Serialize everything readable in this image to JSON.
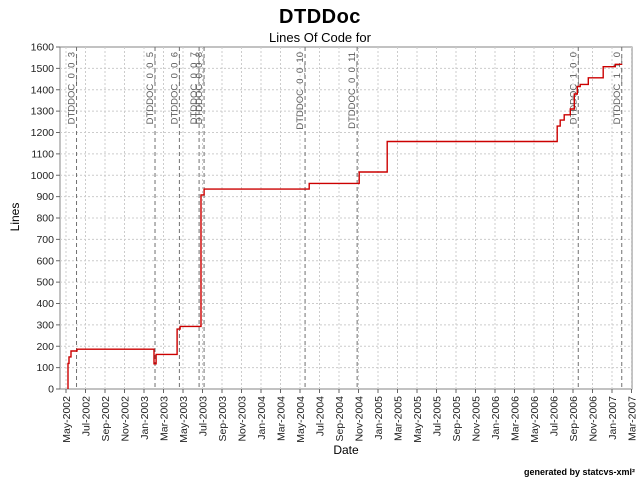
{
  "footer": "generated by statcvs-xml²",
  "colors": {
    "series_line": "#cc0000",
    "gridline": "#cccccc",
    "tag_line": "#707070",
    "tag_text": "#5a5a5a",
    "axis": "#666666",
    "tick_text": "#222222",
    "plot_border": "#848484"
  },
  "chart_data": {
    "type": "line",
    "subtype": "step",
    "title": "DTDDoc",
    "subtitle": "Lines Of Code for",
    "xlabel": "Date",
    "ylabel": "Lines",
    "ylim": [
      0,
      1600
    ],
    "ytick_step": 100,
    "grid": "dashed",
    "legend_position": "none",
    "x_tick_labels": [
      "May-2002",
      "Jul-2002",
      "Sep-2002",
      "Nov-2002",
      "Jan-2003",
      "Mar-2003",
      "May-2003",
      "Jul-2003",
      "Sep-2003",
      "Nov-2003",
      "Jan-2004",
      "Mar-2004",
      "May-2004",
      "Jul-2004",
      "Sep-2004",
      "Nov-2004",
      "Jan-2005",
      "Mar-2005",
      "May-2005",
      "Jul-2005",
      "Sep-2005",
      "Nov-2005",
      "Jan-2006",
      "Mar-2006",
      "May-2006",
      "Jul-2006",
      "Sep-2006",
      "Nov-2006",
      "Jan-2007",
      "Mar-2007"
    ],
    "x_tick_month_spacing": 2,
    "series": [
      {
        "name": "lines-of-code",
        "color": "#cc0000",
        "points": [
          [
            0.21,
            0
          ],
          [
            0.21,
            120
          ],
          [
            0.31,
            120
          ],
          [
            0.31,
            150
          ],
          [
            0.51,
            150
          ],
          [
            0.51,
            178
          ],
          [
            1.13,
            178
          ],
          [
            1.13,
            186
          ],
          [
            9.03,
            186
          ],
          [
            9.03,
            118
          ],
          [
            9.24,
            118
          ],
          [
            9.24,
            162
          ],
          [
            11.39,
            162
          ],
          [
            11.39,
            280
          ],
          [
            11.7,
            280
          ],
          [
            11.7,
            293
          ],
          [
            13.85,
            293
          ],
          [
            13.85,
            908
          ],
          [
            14.16,
            908
          ],
          [
            14.16,
            935
          ],
          [
            24.94,
            935
          ],
          [
            24.94,
            962
          ],
          [
            30.07,
            962
          ],
          [
            30.07,
            1015
          ],
          [
            32.94,
            1015
          ],
          [
            32.94,
            1158
          ],
          [
            50.38,
            1158
          ],
          [
            50.38,
            1230
          ],
          [
            50.69,
            1230
          ],
          [
            50.69,
            1258
          ],
          [
            51.1,
            1258
          ],
          [
            51.1,
            1283
          ],
          [
            51.72,
            1283
          ],
          [
            51.72,
            1310
          ],
          [
            52.13,
            1310
          ],
          [
            52.13,
            1380
          ],
          [
            52.44,
            1380
          ],
          [
            52.44,
            1415
          ],
          [
            52.74,
            1415
          ],
          [
            52.74,
            1425
          ],
          [
            53.57,
            1425
          ],
          [
            53.57,
            1456
          ],
          [
            55.1,
            1456
          ],
          [
            55.1,
            1508
          ],
          [
            56.34,
            1508
          ],
          [
            56.34,
            1519
          ],
          [
            57.05,
            1519
          ]
        ]
      }
    ],
    "tags": [
      {
        "label": "DTDDOC_0_0_3",
        "month": 1.08
      },
      {
        "label": "DTDDOC_0_0_5",
        "month": 9.13
      },
      {
        "label": "DTDDOC_0_0_6",
        "month": 11.63
      },
      {
        "label": "DTDDOC_0_0_7",
        "month": 13.65
      },
      {
        "label": "DTDDOC_0_0_8",
        "month": 14.16
      },
      {
        "label": "DTDDOC_0_0_10",
        "month": 24.52
      },
      {
        "label": "DTDDOC_0_0_11",
        "month": 29.86
      },
      {
        "label": "DTDDOC_1_0_0",
        "month": 52.54
      },
      {
        "label": "DTDDOC_1_1_0",
        "month": 57.0
      }
    ]
  }
}
